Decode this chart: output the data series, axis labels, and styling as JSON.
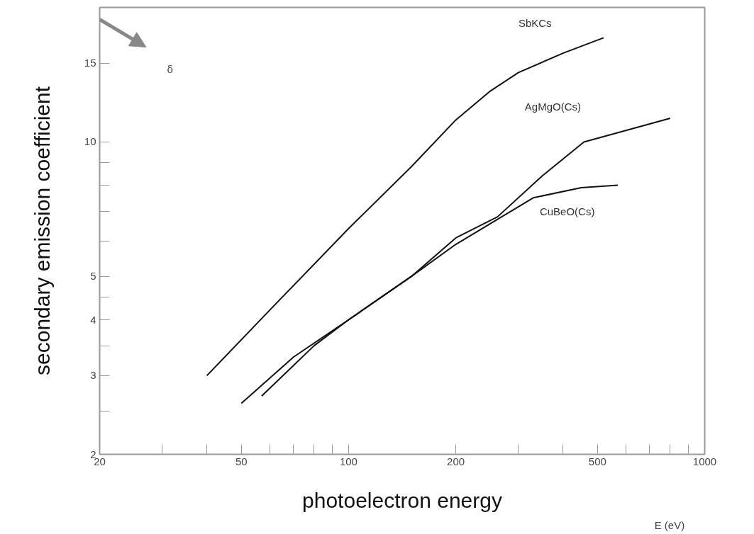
{
  "chart_data": {
    "type": "line",
    "xlabel": "photoelectron energy",
    "ylabel": "secondary emission coefficient",
    "log": "xy",
    "grid": false,
    "marker": "none",
    "line_style": "solid",
    "xlim": [
      20,
      1000
    ],
    "ylim": [
      2,
      20
    ],
    "xticks": [
      20,
      {
        "value": 30,
        "label": null
      },
      {
        "value": 40,
        "label": null
      },
      50,
      {
        "value": 60,
        "label": null
      },
      {
        "value": 70,
        "label": null
      },
      {
        "value": 80,
        "label": null
      },
      {
        "value": 90,
        "label": null
      },
      100,
      200,
      {
        "value": 300,
        "label": null
      },
      {
        "value": 400,
        "label": null
      },
      500,
      {
        "value": 600,
        "label": null
      },
      {
        "value": 700,
        "label": null
      },
      {
        "value": 800,
        "label": null
      },
      {
        "value": 900,
        "label": null
      },
      1000
    ],
    "yticks": [
      2,
      {
        "value": 2.5,
        "label": null
      },
      3,
      {
        "value": 3.5,
        "label": null
      },
      4,
      {
        "value": 4.5,
        "label": null
      },
      5,
      {
        "value": 6,
        "label": null
      },
      {
        "value": 7,
        "label": null
      },
      {
        "value": 8,
        "label": null
      },
      {
        "value": 9,
        "label": null
      },
      10,
      15
    ],
    "series": [
      {
        "name": "SbKCs",
        "color": "#111111",
        "x": [
          40,
          60,
          100,
          150,
          200,
          250,
          300,
          400,
          520
        ],
        "values": [
          3.0,
          4.2,
          6.4,
          8.8,
          11.2,
          13.0,
          14.3,
          15.8,
          17.1
        ]
      },
      {
        "name": "AgMgO(Cs)",
        "color": "#111111",
        "x": [
          50,
          70,
          100,
          150,
          200,
          262,
          350,
          458,
          800
        ],
        "values": [
          2.6,
          3.3,
          4.0,
          5.0,
          6.1,
          6.8,
          8.4,
          10.0,
          11.3
        ]
      },
      {
        "name": "CuBeO(Cs)",
        "color": "#111111",
        "x": [
          57,
          80,
          100,
          150,
          200,
          330,
          450,
          570
        ],
        "values": [
          2.7,
          3.5,
          4.0,
          5.0,
          5.9,
          7.5,
          7.9,
          8.0
        ]
      }
    ],
    "annotations": [
      "δ",
      "E   (eV)"
    ]
  }
}
